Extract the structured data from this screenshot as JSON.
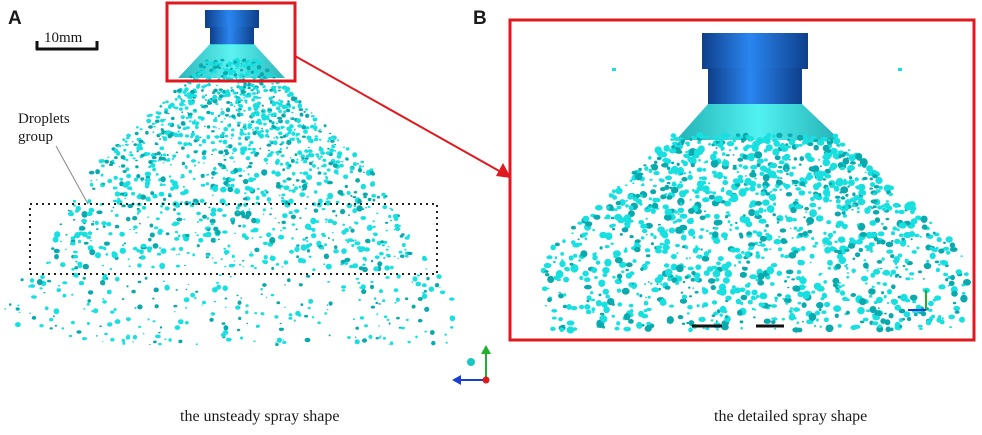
{
  "panels": {
    "a": {
      "letter": "A",
      "scale_bar_label": "10mm",
      "annotation_line1": "Droplets",
      "annotation_line2": "group",
      "caption": "the unsteady spray shape"
    },
    "b": {
      "letter": "B",
      "caption": "the detailed spray shape"
    }
  },
  "colors": {
    "nozzle_blue": "#1f6fd6",
    "nozzle_dark": "#0e3f8a",
    "spray_cyan": "#19e0e0",
    "spray_dark": "#0aa9ad",
    "highlight_red": "#e0191e",
    "axis_green": "#20b030",
    "axis_blue": "#1a3fd0",
    "axis_red": "#e01a1a"
  },
  "icons": {
    "axis_triad": "xyz-axis-icon"
  }
}
